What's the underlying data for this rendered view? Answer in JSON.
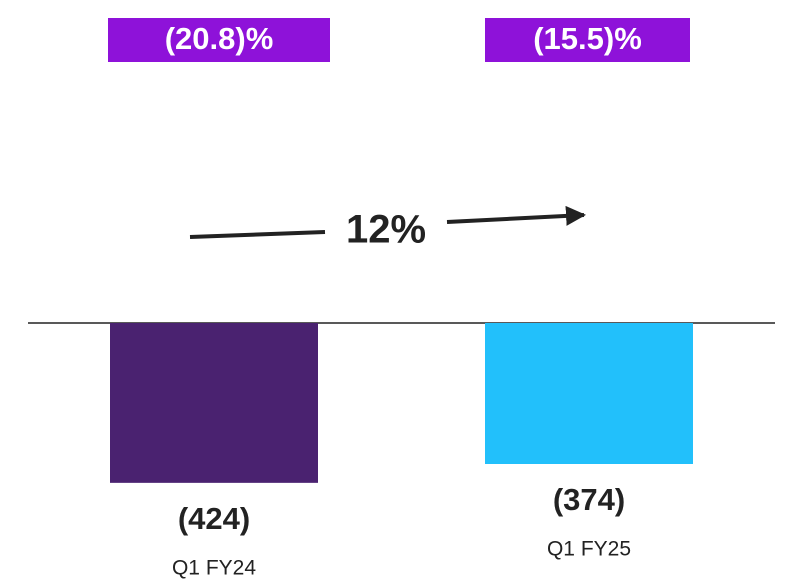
{
  "chart_data": {
    "type": "bar",
    "categories": [
      "Q1 FY24",
      "Q1 FY25"
    ],
    "values": [
      -424,
      -374
    ],
    "value_labels": [
      "(424)",
      "(374)"
    ],
    "colors": [
      "#4a2270",
      "#22c0fb"
    ],
    "margins": [
      "(20.8)%",
      "(15.5)%"
    ],
    "margin_color": "#8e12d9",
    "change": "12%",
    "ylim": [
      -500,
      0
    ]
  }
}
